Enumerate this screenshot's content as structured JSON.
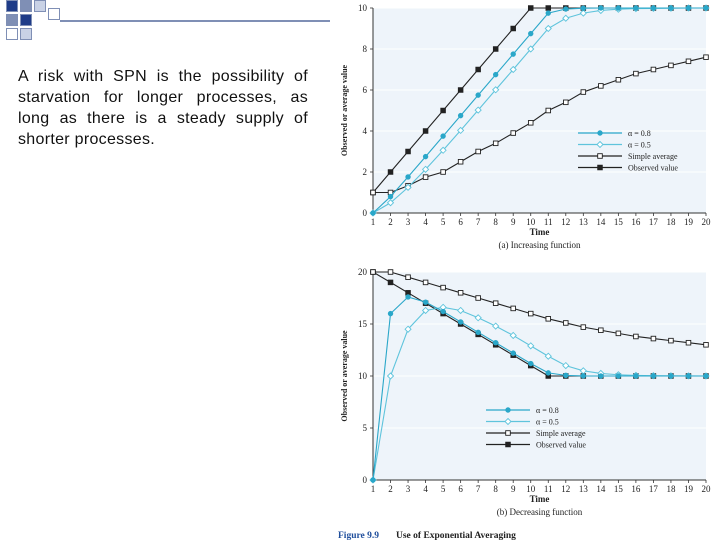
{
  "slide": {
    "text": "A risk with SPN is the possibility of starvation for longer processes, as long as there is a steady supply of shorter processes."
  },
  "figure": {
    "caption_label": "Figure 9.9",
    "caption_title": "Use of Exponential Averaging"
  },
  "colors": {
    "alpha08": "#2aa7c9",
    "alpha05": "#5fc4dc",
    "simple": "#222222",
    "observed": "#222222",
    "axis": "#333333",
    "caption": "#1f4e9c"
  },
  "chart_data": [
    {
      "type": "line",
      "title": "(a) Increasing function",
      "xlabel": "Time",
      "ylabel": "Observed or average value",
      "x": [
        1,
        2,
        3,
        4,
        5,
        6,
        7,
        8,
        9,
        10,
        11,
        12,
        13,
        14,
        15,
        16,
        17,
        18,
        19,
        20
      ],
      "xlim": [
        1,
        20
      ],
      "ylim": [
        0,
        10
      ],
      "yticks": [
        0,
        2,
        4,
        6,
        8,
        10
      ],
      "legend_position": "right",
      "series": [
        {
          "name": "α = 0.8",
          "marker": "filled-circle",
          "values": [
            0,
            0.8,
            1.76,
            2.75,
            3.75,
            4.75,
            5.75,
            6.75,
            7.75,
            8.75,
            9.75,
            9.95,
            9.99,
            10,
            10,
            10,
            10,
            10,
            10,
            10
          ]
        },
        {
          "name": "α = 0.5",
          "marker": "open-diamond",
          "values": [
            0,
            0.5,
            1.25,
            2.13,
            3.06,
            4.03,
            5.02,
            6.01,
            7.0,
            8.0,
            9.0,
            9.5,
            9.75,
            9.88,
            9.94,
            9.97,
            9.98,
            9.99,
            10,
            10
          ]
        },
        {
          "name": "Simple average",
          "marker": "open-square",
          "values": [
            1,
            1,
            1.33,
            1.75,
            2.0,
            2.5,
            3.0,
            3.4,
            3.9,
            4.4,
            5.0,
            5.4,
            5.9,
            6.2,
            6.5,
            6.8,
            7.0,
            7.2,
            7.4,
            7.6
          ]
        },
        {
          "name": "Observed value",
          "marker": "filled-square",
          "values": [
            1,
            2,
            3,
            4,
            5,
            6,
            7,
            8,
            9,
            10,
            10,
            10,
            10,
            10,
            10,
            10,
            10,
            10,
            10,
            10
          ]
        }
      ]
    },
    {
      "type": "line",
      "title": "(b) Decreasing function",
      "xlabel": "Time",
      "ylabel": "Observed or average value",
      "x": [
        1,
        2,
        3,
        4,
        5,
        6,
        7,
        8,
        9,
        10,
        11,
        12,
        13,
        14,
        15,
        16,
        17,
        18,
        19,
        20
      ],
      "xlim": [
        1,
        20
      ],
      "ylim": [
        0,
        20
      ],
      "yticks": [
        0,
        5,
        10,
        15,
        20
      ],
      "legend_position": "bottom-center",
      "series": [
        {
          "name": "α = 0.8",
          "marker": "filled-circle",
          "values": [
            0,
            16,
            17.6,
            17.1,
            16.2,
            15.2,
            14.2,
            13.2,
            12.2,
            11.2,
            10.3,
            10.06,
            10.01,
            10,
            10,
            10,
            10,
            10,
            10,
            10
          ]
        },
        {
          "name": "α = 0.5",
          "marker": "open-diamond",
          "values": [
            0,
            10,
            14.5,
            16.3,
            16.6,
            16.3,
            15.6,
            14.8,
            13.9,
            12.9,
            11.9,
            11.0,
            10.5,
            10.25,
            10.12,
            10.06,
            10.03,
            10.02,
            10.01,
            10
          ]
        },
        {
          "name": "Simple average",
          "marker": "open-square",
          "values": [
            20,
            20,
            19.5,
            19.0,
            18.5,
            18.0,
            17.5,
            17.0,
            16.5,
            16.0,
            15.5,
            15.1,
            14.7,
            14.4,
            14.1,
            13.8,
            13.6,
            13.4,
            13.2,
            13.0
          ]
        },
        {
          "name": "Observed value",
          "marker": "filled-square",
          "values": [
            20,
            19,
            18,
            17,
            16,
            15,
            14,
            13,
            12,
            11,
            10,
            10,
            10,
            10,
            10,
            10,
            10,
            10,
            10,
            10
          ]
        }
      ]
    }
  ]
}
